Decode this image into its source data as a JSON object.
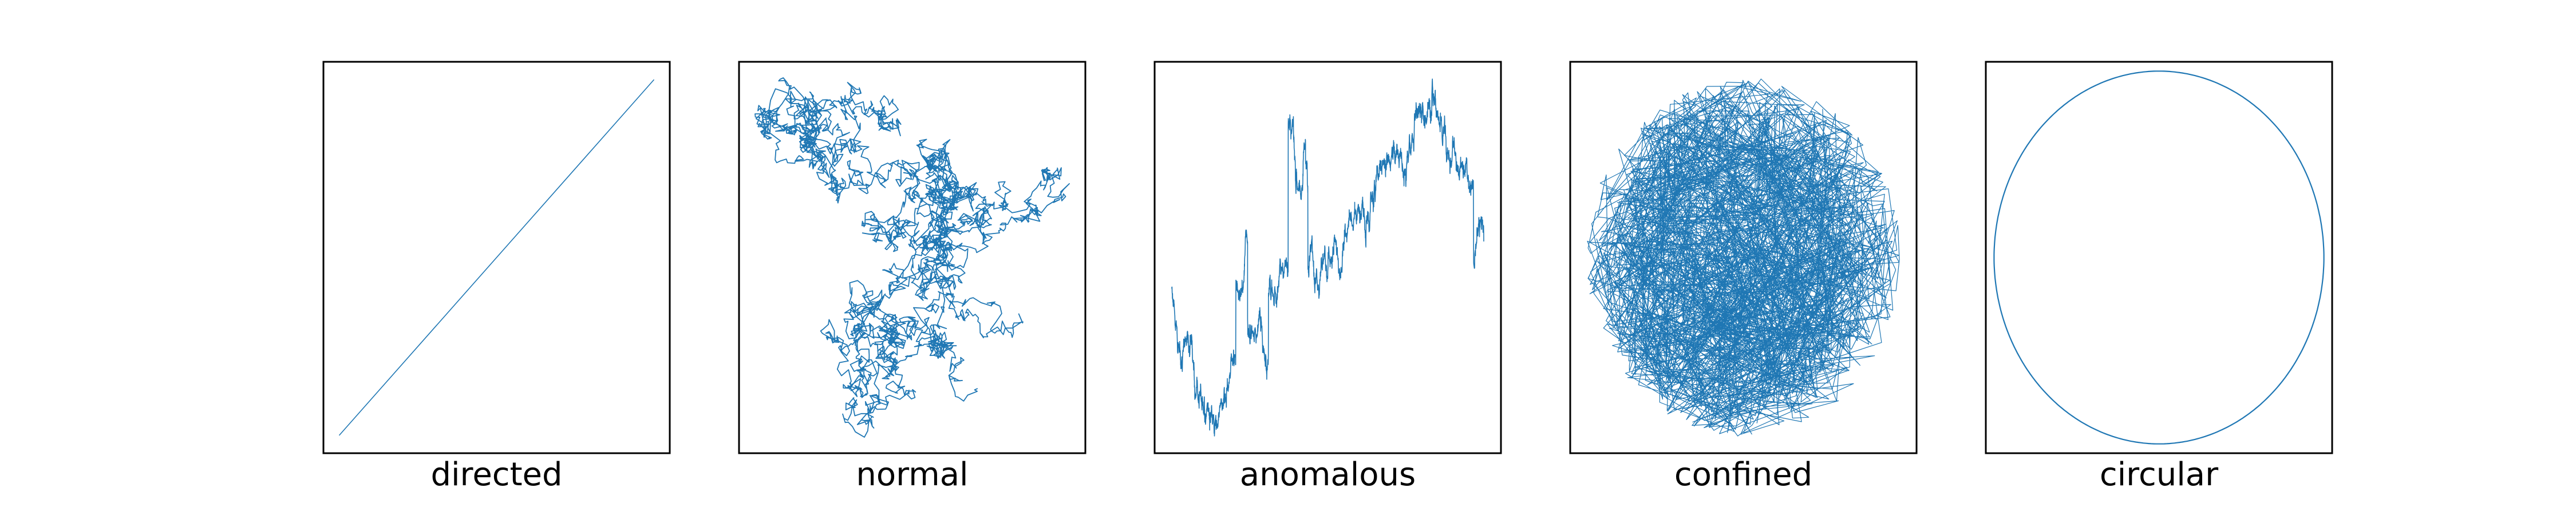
{
  "colors": {
    "trajectory": "#1f77b4",
    "frame": "#000000",
    "background": "#ffffff"
  },
  "chart_data": [
    {
      "type": "line",
      "title": "",
      "xlabel": "directed",
      "ylabel": "",
      "grid": false,
      "ticks": false,
      "pattern": "straight diagonal line from lower-left to upper-right",
      "x": [
        0,
        1
      ],
      "y": [
        0,
        1
      ],
      "xlim": [
        -0.05,
        1.05
      ],
      "ylim": [
        -0.05,
        1.05
      ]
    },
    {
      "type": "line",
      "title": "",
      "xlabel": "normal",
      "ylabel": "",
      "grid": false,
      "ticks": false,
      "pattern": "random walk (Brownian motion), unbounded",
      "num_points": 3000,
      "seed": 7
    },
    {
      "type": "line",
      "title": "",
      "xlabel": "anomalous",
      "ylabel": "",
      "grid": false,
      "ticks": false,
      "pattern": "anomalous diffusion trajectory with long jumps",
      "num_points": 2600,
      "seed": 11
    },
    {
      "type": "line",
      "title": "",
      "xlabel": "confined",
      "ylabel": "",
      "grid": false,
      "ticks": false,
      "pattern": "random jumps confined within a circular region",
      "num_points": 2200,
      "seed": 3
    },
    {
      "type": "line",
      "title": "",
      "xlabel": "circular",
      "ylabel": "",
      "grid": false,
      "ticks": false,
      "pattern": "circle",
      "x_expr": "cos(t)",
      "y_expr": "sin(t)",
      "t_range": [
        0,
        6.2832
      ],
      "xlim": [
        -1.05,
        1.05
      ],
      "ylim": [
        -1.05,
        1.05
      ]
    }
  ]
}
